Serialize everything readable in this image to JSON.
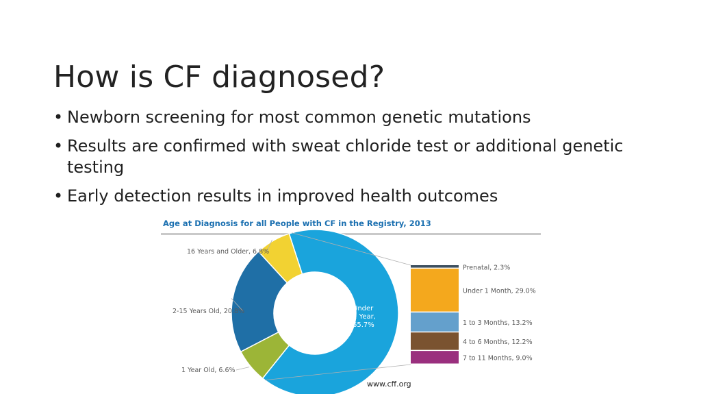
{
  "slide": {
    "title": "How is CF diagnosed?",
    "bullets": [
      "Newborn screening for most common genetic mutations",
      "Results are confirmed with sweat chloride test or additional genetic testing",
      "Early detection results in improved health outcomes"
    ],
    "source": "www.cff.org"
  },
  "chart_data": {
    "type": "pie",
    "title": "Age at Diagnosis for all People with CF in the Registry, 2013",
    "donut": {
      "slices": [
        {
          "label": "Under 1 Year, 65.7%",
          "value": 65.7,
          "color": "#1aa4dc"
        },
        {
          "label": "1 Year Old, 6.6%",
          "value": 6.6,
          "color": "#9cb537"
        },
        {
          "label": "2-15 Years Old, 20.8%",
          "value": 20.8,
          "color": "#1f6fa6"
        },
        {
          "label": "16 Years and Older, 6.8%",
          "value": 6.8,
          "color": "#f2d232"
        }
      ],
      "center_label": [
        "Under",
        "1 Year,",
        "65.7%"
      ]
    },
    "breakdown": {
      "type": "stacked-bar",
      "segments": [
        {
          "label": "Prenatal, 2.3%",
          "value": 2.3,
          "color": "#3d4f5f"
        },
        {
          "label": "Under 1 Month, 29.0%",
          "value": 29.0,
          "color": "#f4a81d"
        },
        {
          "label": "1 to 3 Months, 13.2%",
          "value": 13.2,
          "color": "#64a0cc"
        },
        {
          "label": "4 to 6 Months, 12.2%",
          "value": 12.2,
          "color": "#7a5330"
        },
        {
          "label": "7 to 11 Months, 9.0%",
          "value": 9.0,
          "color": "#9a2f7e"
        }
      ]
    }
  }
}
